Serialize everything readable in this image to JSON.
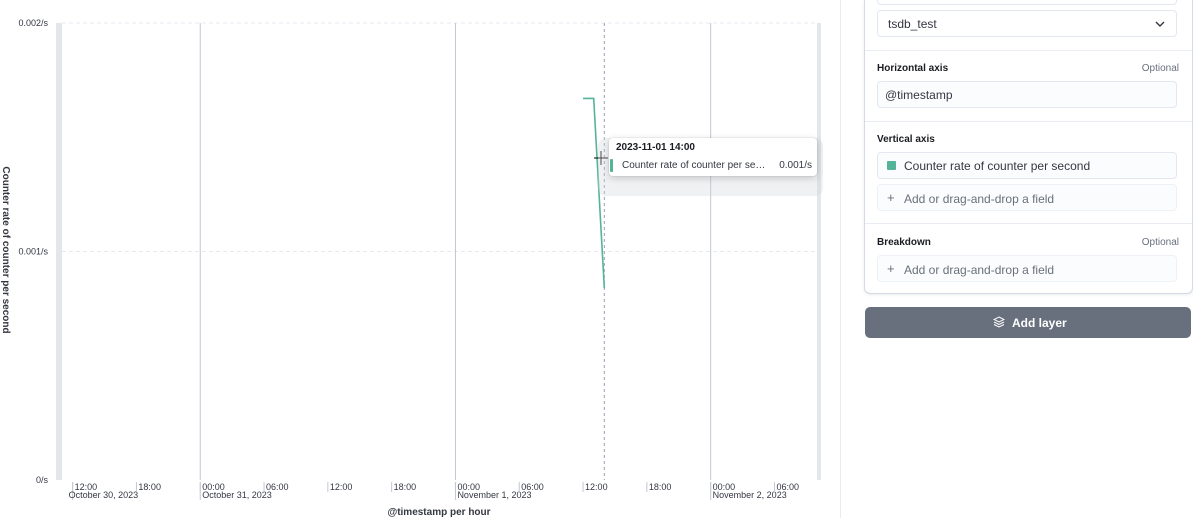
{
  "chart": {
    "ylabel": "Counter rate of counter per second",
    "xlabel": "@timestamp per hour",
    "y_ticks": [
      {
        "value": 0,
        "label": "0/s"
      },
      {
        "value": 0.001,
        "label": "0.001/s"
      },
      {
        "value": 0.002,
        "label": "0.002/s"
      }
    ],
    "x_hour_ticks": [
      {
        "hour": 12,
        "label": "12:00",
        "date": "October 30, 2023"
      },
      {
        "hour": 18,
        "label": "18:00",
        "date": ""
      },
      {
        "hour": 24,
        "label": "00:00",
        "date": "October 31, 2023"
      },
      {
        "hour": 30,
        "label": "06:00",
        "date": ""
      },
      {
        "hour": 36,
        "label": "12:00",
        "date": ""
      },
      {
        "hour": 42,
        "label": "18:00",
        "date": ""
      },
      {
        "hour": 48,
        "label": "00:00",
        "date": "November 1, 2023"
      },
      {
        "hour": 54,
        "label": "06:00",
        "date": ""
      },
      {
        "hour": 60,
        "label": "12:00",
        "date": ""
      },
      {
        "hour": 66,
        "label": "18:00",
        "date": ""
      },
      {
        "hour": 72,
        "label": "00:00",
        "date": "November 2, 2023"
      },
      {
        "hour": 78,
        "label": "06:00",
        "date": ""
      }
    ],
    "colors": {
      "series": "#54b399",
      "grid": "#e6e9ef",
      "gutter": "#e3e6eb"
    }
  },
  "chart_data": {
    "type": "line",
    "title": "",
    "xlabel": "@timestamp per hour",
    "ylabel": "Counter rate of counter per second",
    "ylim": [
      0,
      0.002
    ],
    "xlim": [
      "2023-10-30 11:00",
      "2023-11-02 10:00"
    ],
    "series": [
      {
        "name": "Counter rate of counter per second",
        "color": "#54b399",
        "x": [
          "2023-11-01 12:00",
          "2023-11-01 13:00",
          "2023-11-01 14:00"
        ],
        "y": [
          0.00167,
          0.00167,
          0.00084
        ]
      }
    ],
    "cursor_x": "2023-11-01 14:00",
    "grid": true
  },
  "tooltip": {
    "title": "2023-11-01 14:00",
    "series_label": "Counter rate of counter per second",
    "value": "0.001/s"
  },
  "panel": {
    "index_value": "tsdb_test",
    "horizontal_axis": {
      "title": "Horizontal axis",
      "optional": "Optional",
      "value": "@timestamp"
    },
    "vertical_axis": {
      "title": "Vertical axis",
      "value": "Counter rate of counter per second",
      "add_field": "Add or drag-and-drop a field"
    },
    "breakdown": {
      "title": "Breakdown",
      "optional": "Optional",
      "add_field": "Add or drag-and-drop a field"
    }
  },
  "add_layer_button": {
    "label": "Add layer",
    "icon": "layers-icon"
  }
}
